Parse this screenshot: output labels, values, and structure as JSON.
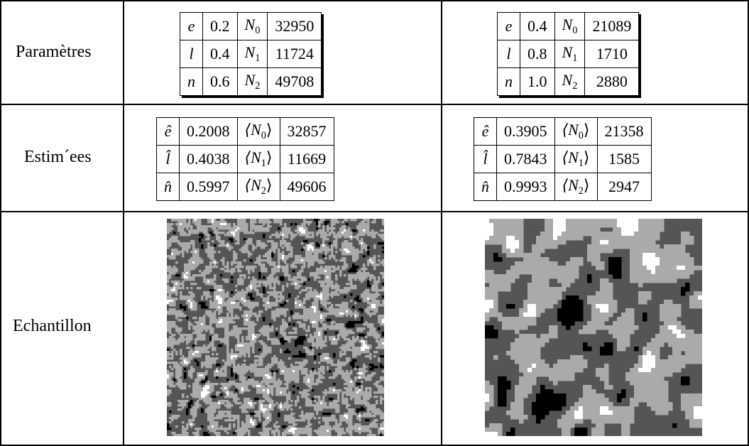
{
  "rows": {
    "params_label": "Paramètres",
    "estimates_label": "Estim´ees",
    "sample_label": "Echantillon"
  },
  "params_left": [
    {
      "sym": "e",
      "val": "0.2",
      "nsym": "N",
      "nsub": "0",
      "count": "32950"
    },
    {
      "sym": "l",
      "val": "0.4",
      "nsym": "N",
      "nsub": "1",
      "count": "11724"
    },
    {
      "sym": "n",
      "val": "0.6",
      "nsym": "N",
      "nsub": "2",
      "count": "49708"
    }
  ],
  "params_right": [
    {
      "sym": "e",
      "val": "0.4",
      "nsym": "N",
      "nsub": "0",
      "count": "21089"
    },
    {
      "sym": "l",
      "val": "0.8",
      "nsym": "N",
      "nsub": "1",
      "count": "1710"
    },
    {
      "sym": "n",
      "val": "1.0",
      "nsym": "N",
      "nsub": "2",
      "count": "2880"
    }
  ],
  "est_left": [
    {
      "sym": "ê",
      "val": "0.2008",
      "nsym": "⟨N",
      "nsub": "0",
      "close": "⟩",
      "count": "32857"
    },
    {
      "sym": "l̂",
      "val": "0.4038",
      "nsym": "⟨N",
      "nsub": "1",
      "close": "⟩",
      "count": "11669"
    },
    {
      "sym": "n̂",
      "val": "0.5997",
      "nsym": "⟨N",
      "nsub": "2",
      "close": "⟩",
      "count": "49606"
    }
  ],
  "est_right": [
    {
      "sym": "ê",
      "val": "0.3905",
      "nsym": "⟨N",
      "nsub": "0",
      "close": "⟩",
      "count": "21358"
    },
    {
      "sym": "l̂",
      "val": "0.7843",
      "nsym": "⟨N",
      "nsub": "1",
      "close": "⟩",
      "count": "1585"
    },
    {
      "sym": "n̂",
      "val": "0.9993",
      "nsym": "⟨N",
      "nsub": "2",
      "close": "⟩",
      "count": "2947"
    }
  ],
  "colors": {
    "black": "#000000",
    "dark_gray": "#555555",
    "light_gray": "#aaaaaa",
    "white": "#ffffff"
  }
}
